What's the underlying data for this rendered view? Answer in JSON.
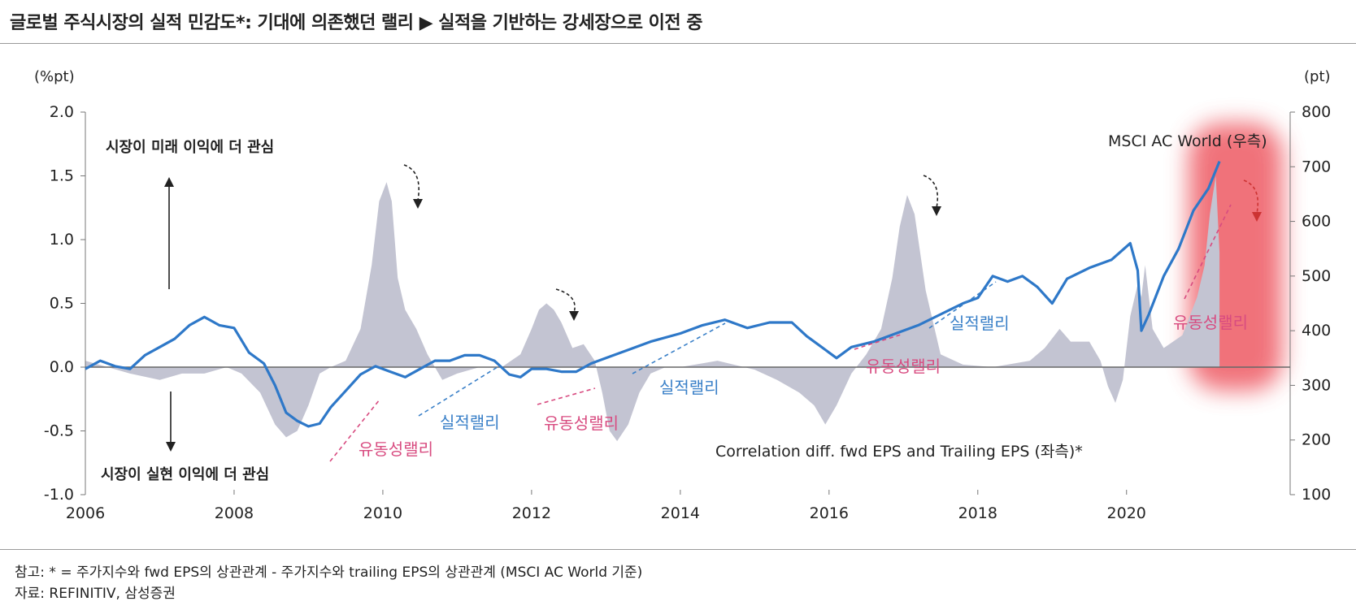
{
  "header": {
    "title": "글로벌 주식시장의 실적 민감도*: 기대에 의존했던 랠리 ▶ 실적을 기반하는 강세장으로 이전 중"
  },
  "footer": {
    "note": "참고: * = 주가지수와 fwd EPS의 상관관계 - 주가지수와 trailing EPS의 상관관계 (MSCI AC World 기준)",
    "source": "자료: REFINITIV, 삼성증권"
  },
  "chart_data": {
    "type": "area",
    "left_unit": "(%pt)",
    "right_unit": "(pt)",
    "left_ticks": [
      "2.0",
      "1.5",
      "1.0",
      "0.5",
      "0.0",
      "-0.5",
      "-1.0"
    ],
    "right_ticks": [
      "800",
      "700",
      "600",
      "500",
      "400",
      "300",
      "200",
      "100"
    ],
    "x_ticks": [
      "2006",
      "2008",
      "2010",
      "2012",
      "2014",
      "2016",
      "2018",
      "2020"
    ],
    "ylim_left": [
      -1.0,
      2.0
    ],
    "ylim_right": [
      100,
      800
    ],
    "xlim": [
      2006,
      2022.2
    ],
    "colors": {
      "area": "#c3c4d2",
      "line": "#2e78c8",
      "blue_text": "#3a80c8",
      "pink_text": "#d84b80",
      "highlight": "#ee5a64"
    },
    "annotations": {
      "top_label": "시장이 미래 이익에 더 관심",
      "bottom_label": "시장이 실현 이익에 더 관심",
      "msci_label": "MSCI AC World (우측)",
      "corr_label": "Correlation diff. fwd EPS and Trailing EPS (좌측)*",
      "earnings_rally": "실적랠리",
      "liquidity_rally": "유동성랠리"
    },
    "series": [
      {
        "name": "Correlation diff. fwd EPS and Trailing EPS (좌측)*",
        "axis": "left",
        "x": [
          2006.0,
          2006.3,
          2006.6,
          2007.0,
          2007.3,
          2007.6,
          2007.9,
          2008.1,
          2008.35,
          2008.55,
          2008.7,
          2008.85,
          2009.0,
          2009.15,
          2009.3,
          2009.5,
          2009.7,
          2009.85,
          2009.95,
          2010.05,
          2010.12,
          2010.2,
          2010.3,
          2010.45,
          2010.6,
          2010.8,
          2011.0,
          2011.3,
          2011.6,
          2011.85,
          2012.0,
          2012.1,
          2012.2,
          2012.3,
          2012.4,
          2012.55,
          2012.7,
          2012.85,
          2012.95,
          2013.05,
          2013.15,
          2013.3,
          2013.45,
          2013.6,
          2013.8,
          2014.0,
          2014.5,
          2015.0,
          2015.3,
          2015.6,
          2015.8,
          2015.95,
          2016.1,
          2016.3,
          2016.5,
          2016.7,
          2016.85,
          2016.95,
          2017.05,
          2017.15,
          2017.3,
          2017.5,
          2017.8,
          2018.2,
          2018.7,
          2018.9,
          2019.1,
          2019.25,
          2019.5,
          2019.65,
          2019.75,
          2019.85,
          2019.95,
          2020.05,
          2020.15,
          2020.2,
          2020.25,
          2020.35,
          2020.5,
          2020.75,
          2020.95,
          2021.05,
          2021.12,
          2021.2,
          2021.25
        ],
        "values": [
          0.05,
          0.0,
          -0.05,
          -0.1,
          -0.05,
          -0.05,
          0.0,
          -0.05,
          -0.2,
          -0.45,
          -0.55,
          -0.5,
          -0.3,
          -0.05,
          0.0,
          0.05,
          0.3,
          0.8,
          1.3,
          1.45,
          1.3,
          0.7,
          0.45,
          0.3,
          0.1,
          -0.1,
          -0.05,
          0.0,
          0.0,
          0.1,
          0.3,
          0.45,
          0.5,
          0.45,
          0.35,
          0.15,
          0.18,
          0.05,
          -0.2,
          -0.5,
          -0.58,
          -0.45,
          -0.2,
          -0.05,
          0.0,
          0.0,
          0.05,
          -0.02,
          -0.1,
          -0.2,
          -0.3,
          -0.45,
          -0.3,
          -0.05,
          0.1,
          0.3,
          0.7,
          1.1,
          1.35,
          1.2,
          0.6,
          0.1,
          0.02,
          0.0,
          0.05,
          0.15,
          0.3,
          0.2,
          0.2,
          0.05,
          -0.15,
          -0.28,
          -0.1,
          0.4,
          0.65,
          0.55,
          0.8,
          0.3,
          0.15,
          0.25,
          0.55,
          0.8,
          1.2,
          1.5,
          0.9
        ]
      },
      {
        "name": "MSCI AC World (우측)",
        "axis": "right",
        "x": [
          2006.0,
          2006.2,
          2006.4,
          2006.6,
          2006.8,
          2007.0,
          2007.2,
          2007.4,
          2007.6,
          2007.8,
          2008.0,
          2008.2,
          2008.4,
          2008.55,
          2008.7,
          2008.85,
          2009.0,
          2009.15,
          2009.3,
          2009.5,
          2009.7,
          2009.9,
          2010.1,
          2010.3,
          2010.5,
          2010.7,
          2010.9,
          2011.1,
          2011.3,
          2011.5,
          2011.7,
          2011.85,
          2012.0,
          2012.2,
          2012.4,
          2012.6,
          2012.8,
          2013.0,
          2013.3,
          2013.6,
          2014.0,
          2014.3,
          2014.6,
          2014.9,
          2015.2,
          2015.5,
          2015.7,
          2015.9,
          2016.1,
          2016.3,
          2016.6,
          2016.9,
          2017.2,
          2017.5,
          2017.8,
          2018.0,
          2018.2,
          2018.4,
          2018.6,
          2018.8,
          2019.0,
          2019.2,
          2019.5,
          2019.8,
          2020.05,
          2020.15,
          2020.2,
          2020.3,
          2020.5,
          2020.7,
          2020.9,
          2021.1,
          2021.25
        ],
        "values": [
          330,
          345,
          335,
          330,
          355,
          370,
          385,
          410,
          425,
          410,
          405,
          360,
          340,
          300,
          250,
          235,
          225,
          230,
          260,
          290,
          320,
          335,
          325,
          315,
          330,
          345,
          345,
          355,
          355,
          345,
          320,
          315,
          330,
          330,
          325,
          325,
          340,
          350,
          365,
          380,
          395,
          410,
          420,
          405,
          415,
          415,
          390,
          370,
          350,
          370,
          380,
          395,
          410,
          430,
          450,
          460,
          500,
          490,
          500,
          480,
          450,
          495,
          515,
          530,
          560,
          510,
          400,
          430,
          500,
          550,
          620,
          660,
          710
        ]
      }
    ]
  }
}
